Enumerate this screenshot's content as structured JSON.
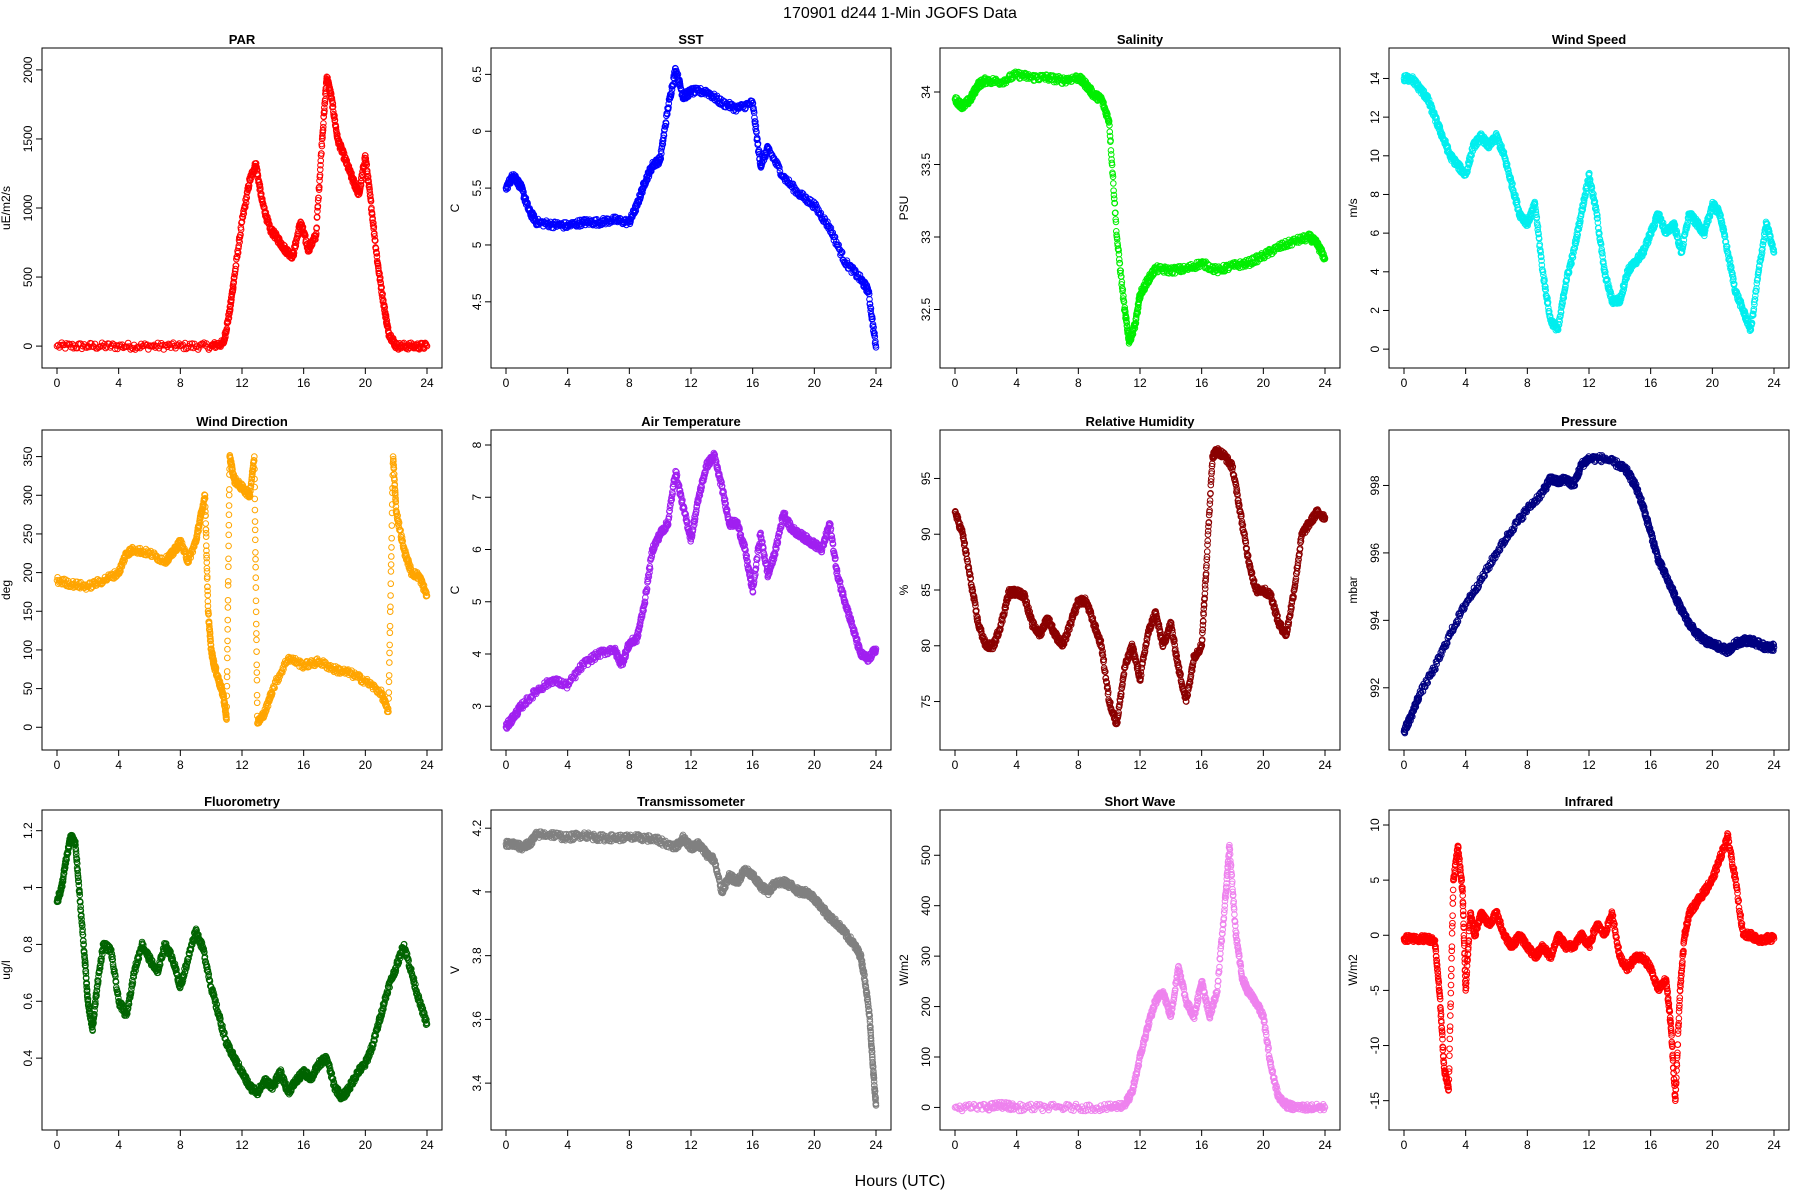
{
  "figure": {
    "title": "170901   d244   1-Min  JGOFS Data",
    "xlabel": "Hours (UTC)"
  },
  "chart_data": [
    {
      "type": "scatter",
      "title": "PAR",
      "ylabel": "uE/m2/s",
      "color": "#ff0000",
      "xlim": [
        0,
        24
      ],
      "ylim": [
        -50,
        2050
      ],
      "xticks": [
        0,
        4,
        8,
        12,
        16,
        20,
        24
      ],
      "yticks": [
        0,
        500,
        1000,
        1500,
        2000
      ],
      "x": [
        0,
        2,
        4,
        6,
        8,
        10,
        10.8,
        11.2,
        11.5,
        12,
        12.5,
        12.9,
        13.3,
        13.8,
        14.3,
        14.8,
        15.3,
        15.8,
        16.3,
        16.8,
        17.2,
        17.5,
        17.8,
        18.2,
        18.7,
        19.2,
        19.6,
        20.0,
        20.4,
        20.8,
        21.2,
        21.5,
        22,
        23,
        24
      ],
      "y": [
        0,
        0,
        0,
        0,
        0,
        0,
        20,
        250,
        500,
        900,
        1200,
        1320,
        1050,
        850,
        780,
        700,
        650,
        900,
        700,
        800,
        1500,
        1950,
        1800,
        1500,
        1350,
        1200,
        1100,
        1380,
        1000,
        600,
        300,
        100,
        0,
        0,
        0
      ]
    },
    {
      "type": "scatter",
      "title": "SST",
      "ylabel": "C",
      "color": "#0000ff",
      "xlim": [
        0,
        24
      ],
      "ylim": [
        4.05,
        6.6
      ],
      "xticks": [
        0,
        4,
        8,
        12,
        16,
        20,
        24
      ],
      "yticks": [
        4.5,
        5.0,
        5.5,
        6.0,
        6.5
      ],
      "x": [
        0,
        0.5,
        1.0,
        1.5,
        2.0,
        3.0,
        4.0,
        5.0,
        6.0,
        7.0,
        8.0,
        8.5,
        9.0,
        9.5,
        10.0,
        10.5,
        11.0,
        11.5,
        12.0,
        13.0,
        14.0,
        15.0,
        16.0,
        16.5,
        17.0,
        18.0,
        19.0,
        20.0,
        21.0,
        22.0,
        23.0,
        23.5,
        24.0
      ],
      "y": [
        5.5,
        5.62,
        5.5,
        5.3,
        5.2,
        5.18,
        5.17,
        5.2,
        5.2,
        5.22,
        5.2,
        5.35,
        5.55,
        5.7,
        5.75,
        6.2,
        6.55,
        6.3,
        6.35,
        6.35,
        6.25,
        6.2,
        6.25,
        5.7,
        5.85,
        5.6,
        5.45,
        5.35,
        5.15,
        4.85,
        4.7,
        4.6,
        4.1
      ]
    },
    {
      "type": "scatter",
      "title": "Salinity",
      "ylabel": "PSU",
      "color": "#00ee00",
      "xlim": [
        0,
        24
      ],
      "ylim": [
        32.2,
        34.2
      ],
      "xticks": [
        0,
        4,
        8,
        12,
        16,
        20,
        24
      ],
      "yticks": [
        32.5,
        33.0,
        33.5,
        34.0
      ],
      "x": [
        0,
        0.5,
        1.0,
        1.5,
        2.0,
        3.0,
        4.0,
        5.0,
        6.0,
        7.0,
        8.0,
        8.5,
        9.0,
        9.5,
        10.0,
        10.5,
        11.0,
        11.3,
        11.7,
        12.0,
        12.5,
        13.0,
        14.0,
        15.0,
        16.0,
        17.0,
        18.0,
        19.0,
        20.0,
        21.0,
        22.0,
        23.0,
        23.5,
        24.0
      ],
      "y": [
        33.95,
        33.9,
        33.95,
        34.05,
        34.08,
        34.07,
        34.12,
        34.1,
        34.1,
        34.08,
        34.1,
        34.05,
        33.98,
        33.95,
        33.8,
        33.0,
        32.5,
        32.28,
        32.4,
        32.6,
        32.7,
        32.78,
        32.77,
        32.78,
        32.82,
        32.77,
        32.8,
        32.82,
        32.87,
        32.93,
        32.97,
        33.0,
        32.95,
        32.85
      ]
    },
    {
      "type": "scatter",
      "title": "Wind Speed",
      "ylabel": "m/s",
      "color": "#00eeee",
      "xlim": [
        0,
        24
      ],
      "ylim": [
        -0.2,
        14.8
      ],
      "xticks": [
        0,
        4,
        8,
        12,
        16,
        20,
        24
      ],
      "yticks": [
        0,
        2,
        4,
        6,
        8,
        10,
        12,
        14
      ],
      "x": [
        0,
        0.5,
        1.0,
        1.5,
        2.0,
        2.5,
        3.0,
        3.5,
        4.0,
        4.5,
        5.0,
        5.5,
        6.0,
        6.5,
        7.0,
        7.5,
        8.0,
        8.5,
        9.0,
        9.5,
        10.0,
        10.5,
        11.0,
        11.5,
        12.0,
        12.5,
        13.0,
        13.5,
        14.0,
        14.5,
        15.0,
        15.5,
        16.0,
        16.5,
        17.0,
        17.5,
        18.0,
        18.5,
        19.0,
        19.5,
        20.0,
        20.5,
        21.0,
        21.5,
        22.0,
        22.5,
        23.0,
        23.5,
        24.0
      ],
      "y": [
        14,
        14,
        13.5,
        13,
        12,
        11,
        10,
        9.5,
        9,
        10.5,
        11,
        10.5,
        11,
        10,
        8.5,
        7,
        6.5,
        7.5,
        4,
        1.5,
        1,
        3.5,
        5,
        7,
        9,
        7,
        4,
        2.5,
        2.5,
        4,
        4.5,
        5,
        6,
        7,
        6,
        6.5,
        5,
        7,
        6.5,
        6,
        7.5,
        7,
        5,
        3,
        2,
        1,
        4,
        6.5,
        5
      ]
    },
    {
      "type": "scatter",
      "title": "Wind Direction",
      "ylabel": "deg",
      "color": "#ffa500",
      "xlim": [
        0,
        24
      ],
      "ylim": [
        -10,
        365
      ],
      "xticks": [
        0,
        4,
        8,
        12,
        16,
        20,
        24
      ],
      "yticks": [
        0,
        50,
        100,
        150,
        200,
        250,
        300,
        350
      ],
      "x": [
        0,
        1.0,
        2.0,
        3.0,
        4.0,
        4.5,
        5.0,
        6.0,
        7.0,
        7.5,
        8.0,
        8.5,
        9.0,
        9.3,
        9.6,
        9.8,
        10.0,
        10.2,
        10.5,
        10.8,
        11.0,
        11.2,
        11.5,
        12.0,
        12.5,
        12.8,
        13.0,
        13.5,
        14.0,
        15.0,
        16.0,
        17.0,
        18.0,
        19.0,
        20.0,
        21.0,
        21.5,
        21.8,
        22.0,
        22.5,
        23.0,
        23.5,
        24.0
      ],
      "y": [
        190,
        185,
        182,
        190,
        200,
        225,
        230,
        225,
        215,
        225,
        240,
        215,
        240,
        270,
        300,
        150,
        100,
        80,
        60,
        40,
        10,
        350,
        320,
        310,
        300,
        350,
        5,
        20,
        50,
        90,
        80,
        85,
        75,
        70,
        60,
        45,
        20,
        350,
        280,
        230,
        200,
        195,
        170
      ]
    },
    {
      "type": "scatter",
      "title": "Air Temperature",
      "ylabel": "C",
      "color": "#a020f0",
      "xlim": [
        0,
        24
      ],
      "ylim": [
        2.45,
        8
      ],
      "xticks": [
        0,
        4,
        8,
        12,
        16,
        20,
        24
      ],
      "yticks": [
        3,
        4,
        5,
        6,
        7,
        8
      ],
      "x": [
        0,
        0.5,
        1.0,
        2.0,
        3.0,
        4.0,
        5.0,
        6.0,
        7.0,
        7.5,
        8.0,
        8.5,
        9.0,
        9.5,
        10.0,
        10.5,
        11.0,
        11.5,
        12.0,
        12.5,
        13.0,
        13.5,
        14.0,
        14.5,
        15.0,
        15.5,
        16.0,
        16.5,
        17.0,
        17.5,
        18.0,
        18.5,
        19.0,
        19.5,
        20.0,
        20.5,
        21.0,
        21.5,
        22.0,
        22.5,
        23.0,
        23.5,
        24.0
      ],
      "y": [
        2.6,
        2.8,
        3.0,
        3.3,
        3.5,
        3.4,
        3.8,
        4.0,
        4.1,
        3.8,
        4.2,
        4.3,
        5.0,
        6.0,
        6.3,
        6.5,
        7.5,
        6.8,
        6.2,
        7.0,
        7.6,
        7.8,
        7.2,
        6.5,
        6.5,
        6.0,
        5.2,
        6.3,
        5.5,
        6.0,
        6.7,
        6.4,
        6.3,
        6.2,
        6.1,
        6.0,
        6.5,
        5.5,
        5.0,
        4.5,
        4.0,
        3.9,
        4.1
      ]
    },
    {
      "type": "scatter",
      "title": "Relative Humidity",
      "ylabel": "%",
      "color": "#8b0000",
      "xlim": [
        0,
        24
      ],
      "ylim": [
        72,
        98
      ],
      "xticks": [
        0,
        4,
        8,
        12,
        16,
        20,
        24
      ],
      "yticks": [
        75,
        80,
        85,
        90,
        95
      ],
      "x": [
        0,
        0.5,
        1.0,
        1.5,
        2.0,
        2.5,
        3.0,
        3.5,
        4.0,
        4.5,
        5.0,
        5.5,
        6.0,
        6.5,
        7.0,
        7.5,
        8.0,
        8.5,
        9.0,
        9.5,
        10.0,
        10.5,
        11.0,
        11.5,
        12.0,
        12.5,
        13.0,
        13.5,
        14.0,
        14.5,
        15.0,
        15.5,
        16.0,
        16.3,
        16.7,
        17.0,
        17.5,
        18.0,
        18.5,
        19.0,
        19.5,
        20.0,
        20.5,
        21.0,
        21.5,
        22.0,
        22.5,
        23.0,
        23.5,
        24.0
      ],
      "y": [
        92,
        90,
        86,
        82,
        80,
        80,
        82,
        84.8,
        84.8,
        84.5,
        82,
        81,
        82.5,
        81,
        80,
        82,
        84,
        84,
        82,
        80,
        75,
        73,
        78,
        80,
        77,
        81,
        83,
        80,
        82,
        78,
        75,
        79,
        80,
        87,
        97,
        97.5,
        97,
        96,
        92,
        88,
        85,
        85,
        84.5,
        82,
        81,
        85,
        90,
        91,
        92,
        91.5
      ]
    },
    {
      "type": "scatter",
      "title": "Pressure",
      "ylabel": "mbar",
      "color": "#000080",
      "xlim": [
        0,
        24
      ],
      "ylim": [
        990.6,
        999.2
      ],
      "xticks": [
        0,
        4,
        8,
        12,
        16,
        20,
        24
      ],
      "yticks": [
        992,
        994,
        996,
        998
      ],
      "x": [
        0,
        0.5,
        1.0,
        2.0,
        3.0,
        4.0,
        5.0,
        6.0,
        7.0,
        8.0,
        9.0,
        9.5,
        10.0,
        10.5,
        11.0,
        11.5,
        12.0,
        13.0,
        14.0,
        14.5,
        15.0,
        15.5,
        16.0,
        16.5,
        17.0,
        17.5,
        18.0,
        18.5,
        19.0,
        19.5,
        20.0,
        20.5,
        21.0,
        21.5,
        22.0,
        22.5,
        23.0,
        23.5,
        24.0
      ],
      "y": [
        990.7,
        991.2,
        991.8,
        992.6,
        993.6,
        994.5,
        995.2,
        996.0,
        996.7,
        997.3,
        997.8,
        998.2,
        998.1,
        998.2,
        998.0,
        998.6,
        998.8,
        998.8,
        998.6,
        998.4,
        998.0,
        997.4,
        996.6,
        995.8,
        995.3,
        994.8,
        994.3,
        993.9,
        993.6,
        993.4,
        993.3,
        993.2,
        993.1,
        993.3,
        993.4,
        993.4,
        993.3,
        993.2,
        993.2
      ]
    },
    {
      "type": "scatter",
      "title": "Fluorometry",
      "ylabel": "ug/l",
      "color": "#006400",
      "xlim": [
        0,
        24
      ],
      "ylim": [
        0.2,
        1.22
      ],
      "xticks": [
        0,
        4,
        8,
        12,
        16,
        20,
        24
      ],
      "yticks": [
        0.4,
        0.6,
        0.8,
        1.0,
        1.2
      ],
      "x": [
        0,
        0.3,
        0.6,
        0.9,
        1.2,
        1.5,
        1.8,
        2.0,
        2.3,
        2.6,
        3.0,
        3.5,
        4.0,
        4.5,
        5.0,
        5.5,
        6.0,
        6.5,
        7.0,
        7.5,
        8.0,
        8.5,
        9.0,
        9.5,
        10.0,
        10.5,
        11.0,
        11.5,
        12.0,
        12.5,
        13.0,
        13.5,
        14.0,
        14.5,
        15.0,
        15.5,
        16.0,
        16.5,
        17.0,
        17.5,
        18.0,
        18.5,
        19.0,
        19.5,
        20.0,
        20.5,
        21.0,
        21.5,
        22.0,
        22.5,
        23.0,
        23.5,
        24.0
      ],
      "y": [
        0.95,
        1.0,
        1.1,
        1.18,
        1.15,
        0.95,
        0.75,
        0.6,
        0.5,
        0.65,
        0.8,
        0.78,
        0.6,
        0.55,
        0.7,
        0.8,
        0.75,
        0.7,
        0.8,
        0.75,
        0.65,
        0.75,
        0.85,
        0.78,
        0.65,
        0.55,
        0.45,
        0.4,
        0.35,
        0.3,
        0.28,
        0.32,
        0.3,
        0.35,
        0.28,
        0.32,
        0.35,
        0.33,
        0.38,
        0.4,
        0.3,
        0.26,
        0.3,
        0.35,
        0.38,
        0.45,
        0.55,
        0.65,
        0.72,
        0.8,
        0.7,
        0.6,
        0.52
      ]
    },
    {
      "type": "scatter",
      "title": "Transmissometer",
      "ylabel": "V",
      "color": "#808080",
      "xlim": [
        0,
        24
      ],
      "ylim": [
        3.3,
        4.21
      ],
      "xticks": [
        0,
        4,
        8,
        12,
        16,
        20,
        24
      ],
      "yticks": [
        3.4,
        3.6,
        3.8,
        4.0,
        4.2
      ],
      "x": [
        0,
        0.5,
        1.0,
        1.5,
        2.0,
        3.0,
        4.0,
        5.0,
        6.0,
        7.0,
        8.0,
        9.0,
        10.0,
        11.0,
        11.5,
        12.0,
        12.5,
        13.0,
        13.5,
        14.0,
        14.5,
        15.0,
        15.5,
        16.0,
        16.5,
        17.0,
        17.5,
        18.0,
        18.5,
        19.0,
        19.5,
        20.0,
        20.5,
        21.0,
        21.5,
        22.0,
        22.5,
        23.0,
        23.3,
        23.6,
        23.8,
        24.0
      ],
      "y": [
        4.15,
        4.15,
        4.14,
        4.15,
        4.18,
        4.18,
        4.17,
        4.18,
        4.17,
        4.17,
        4.17,
        4.17,
        4.16,
        4.14,
        4.17,
        4.14,
        4.15,
        4.12,
        4.1,
        4.0,
        4.05,
        4.03,
        4.07,
        4.05,
        4.02,
        4.0,
        4.03,
        4.03,
        4.02,
        4.0,
        4.0,
        3.98,
        3.95,
        3.92,
        3.9,
        3.87,
        3.84,
        3.8,
        3.72,
        3.6,
        3.45,
        3.33
      ]
    },
    {
      "type": "scatter",
      "title": "Short Wave",
      "ylabel": "W/m2",
      "color": "#ee82ee",
      "xlim": [
        0,
        24
      ],
      "ylim": [
        -15,
        560
      ],
      "xticks": [
        0,
        4,
        8,
        12,
        16,
        20,
        24
      ],
      "yticks": [
        0,
        100,
        200,
        300,
        400,
        500
      ],
      "x": [
        0,
        2,
        3,
        4,
        6,
        8,
        10,
        11.0,
        11.5,
        12.0,
        12.5,
        13.0,
        13.5,
        14.0,
        14.5,
        15.0,
        15.5,
        16.0,
        16.5,
        17.0,
        17.5,
        17.8,
        18.2,
        18.6,
        19.0,
        19.5,
        20.0,
        20.5,
        21.0,
        21.5,
        22,
        23,
        24
      ],
      "y": [
        0,
        0,
        5,
        0,
        0,
        0,
        0,
        5,
        30,
        100,
        160,
        210,
        230,
        180,
        280,
        210,
        180,
        250,
        180,
        230,
        400,
        520,
        350,
        260,
        230,
        210,
        180,
        80,
        20,
        5,
        0,
        0,
        0
      ]
    },
    {
      "type": "scatter",
      "title": "Infrared",
      "ylabel": "W/m2",
      "color": "#ff0000",
      "xlim": [
        0,
        24
      ],
      "ylim": [
        -16.3,
        10
      ],
      "xticks": [
        0,
        4,
        8,
        12,
        16,
        20,
        24
      ],
      "yticks": [
        -15,
        -10,
        -5,
        0,
        5,
        10
      ],
      "x": [
        0,
        0.5,
        1.0,
        1.5,
        2.0,
        2.3,
        2.6,
        2.9,
        3.2,
        3.5,
        3.8,
        4.0,
        4.3,
        4.6,
        5.0,
        5.5,
        6.0,
        6.5,
        7.0,
        7.5,
        8.0,
        8.5,
        9.0,
        9.5,
        10.0,
        10.5,
        11.0,
        11.5,
        12.0,
        12.5,
        13.0,
        13.5,
        14.0,
        14.5,
        15.0,
        15.5,
        16.0,
        16.5,
        17.0,
        17.3,
        17.6,
        17.9,
        18.2,
        18.5,
        19.0,
        19.5,
        20.0,
        20.5,
        21.0,
        21.5,
        22.0,
        22.5,
        23.0,
        23.5,
        24.0
      ],
      "y": [
        -0.3,
        -0.3,
        -0.3,
        -0.3,
        -0.5,
        -5,
        -12,
        -14,
        5,
        8,
        4,
        -5,
        2,
        0,
        2,
        1,
        2,
        0,
        -1,
        0,
        -1,
        -2,
        -1,
        -2,
        0,
        -1,
        -1,
        0,
        -1,
        1,
        0,
        2,
        -2,
        -3,
        -2,
        -2,
        -3,
        -5,
        -4,
        -8,
        -15,
        -5,
        0,
        2,
        3,
        4,
        5,
        7,
        9,
        5,
        0,
        0,
        -0.5,
        -0.3,
        -0.3
      ]
    }
  ]
}
